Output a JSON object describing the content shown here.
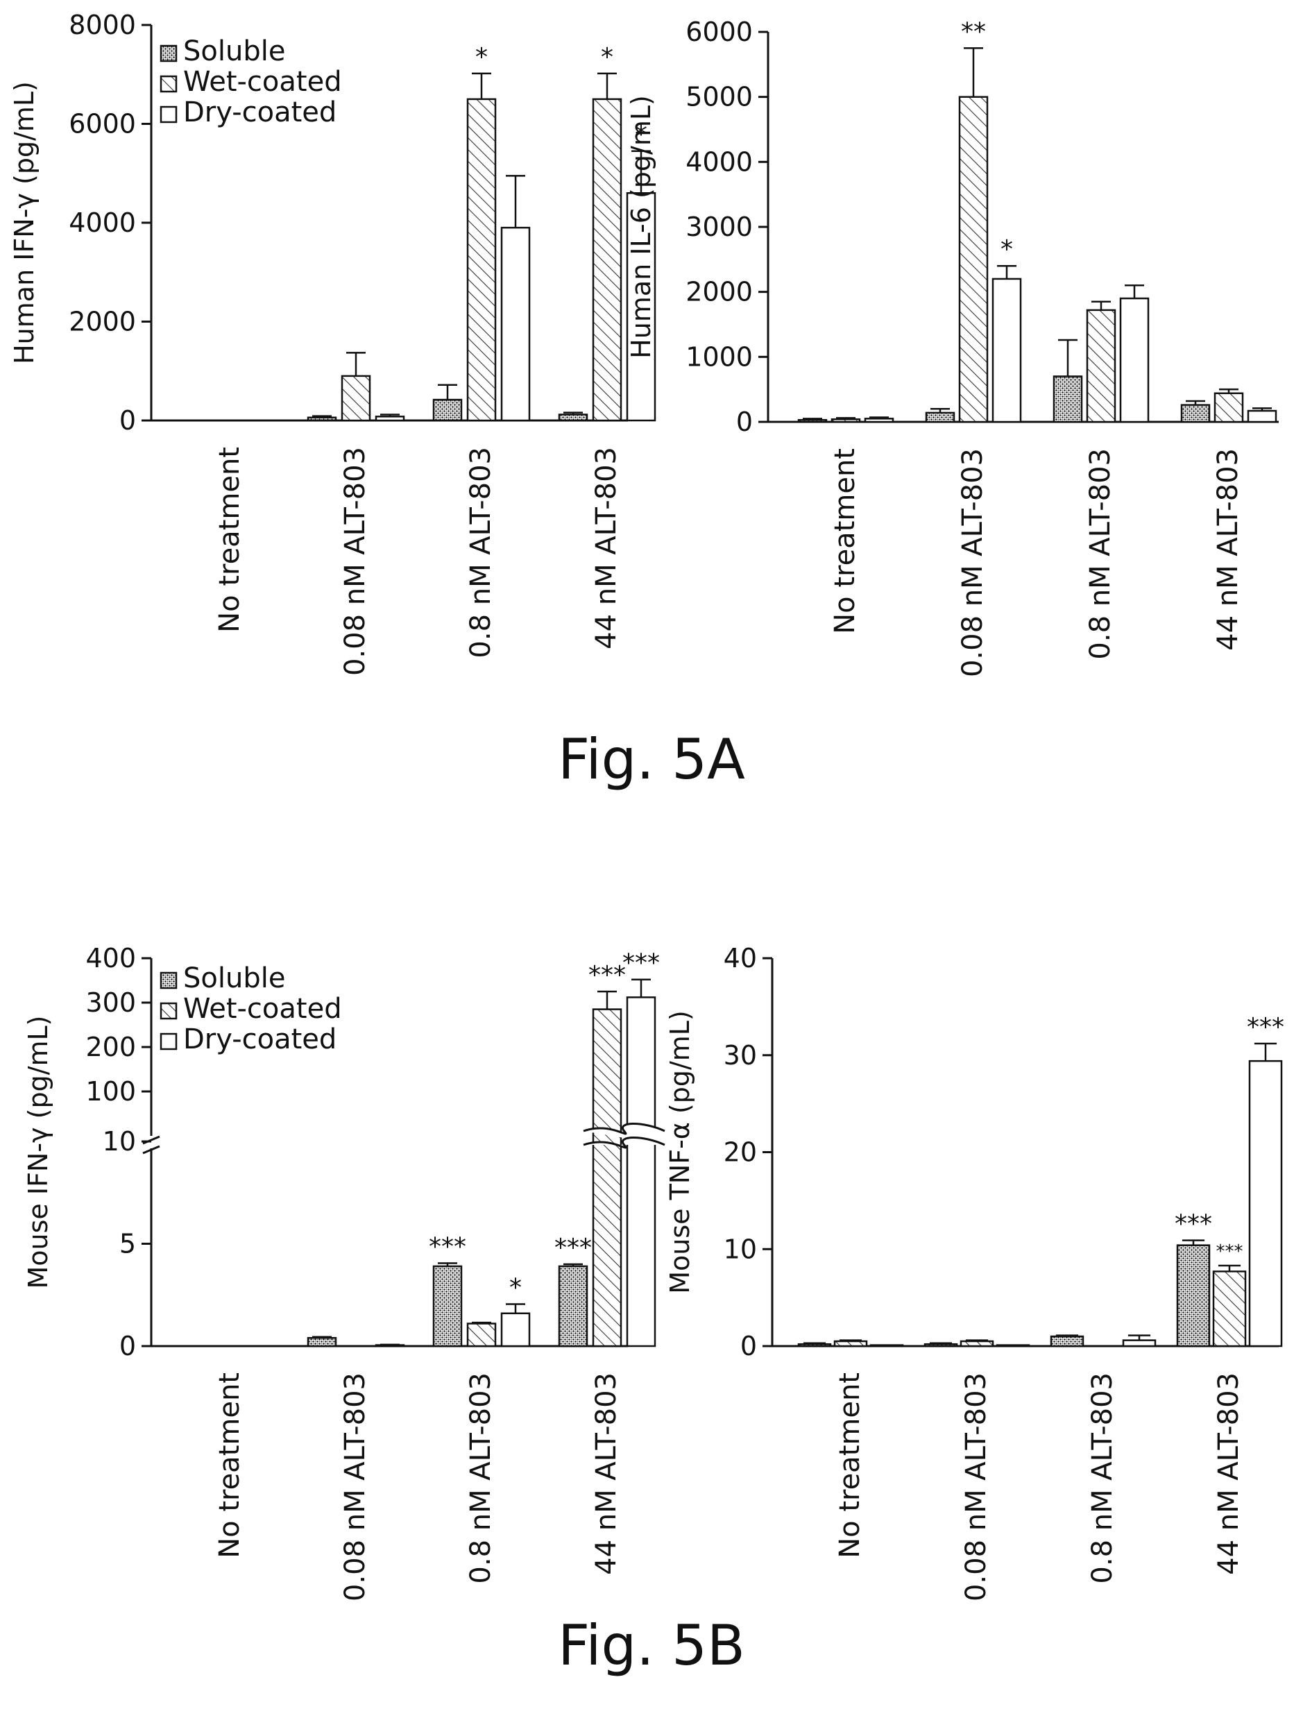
{
  "figures": {
    "fig_5a": "Fig. 5A",
    "fig_5b": "Fig. 5B"
  },
  "chart_data": [
    {
      "type": "bar",
      "panel": "5A-left",
      "ylabel": "Human IFN-γ (pg/mL)",
      "xlabel": "",
      "ylim": [
        0,
        8000
      ],
      "yticks": [
        0,
        2000,
        4000,
        6000,
        8000
      ],
      "categories": [
        "No treatment",
        "0.08 nM ALT-803",
        "0.8 nM ALT-803",
        "44 nM ALT-803"
      ],
      "legend": {
        "position": "top-left",
        "entries": [
          "Soluble",
          "Wet-coated",
          "Dry-coated"
        ]
      },
      "series": [
        {
          "name": "Soluble",
          "values": [
            0,
            60,
            420,
            120
          ],
          "errors": [
            0,
            30,
            300,
            40
          ]
        },
        {
          "name": "Wet-coated",
          "values": [
            0,
            900,
            6500,
            6500
          ],
          "errors": [
            0,
            470,
            520,
            520
          ]
        },
        {
          "name": "Dry-coated",
          "values": [
            0,
            80,
            3900,
            4600
          ],
          "errors": [
            0,
            40,
            1050,
            850
          ]
        }
      ],
      "annotations": [
        {
          "category": 2,
          "series": 1,
          "text": "*"
        },
        {
          "category": 3,
          "series": 1,
          "text": "*"
        },
        {
          "category": 3,
          "series": 2,
          "text": "*"
        }
      ]
    },
    {
      "type": "bar",
      "panel": "5A-right",
      "ylabel": "Human IL-6 (pg/mL)",
      "xlabel": "",
      "ylim": [
        0,
        6000
      ],
      "yticks": [
        0,
        1000,
        2000,
        3000,
        4000,
        5000,
        6000
      ],
      "categories": [
        "No treatment",
        "0.08 nM ALT-803",
        "0.8 nM ALT-803",
        "44 nM ALT-803"
      ],
      "series": [
        {
          "name": "Soluble",
          "values": [
            30,
            140,
            700,
            260
          ],
          "errors": [
            20,
            60,
            560,
            60
          ]
        },
        {
          "name": "Wet-coated",
          "values": [
            40,
            5000,
            1720,
            440
          ],
          "errors": [
            20,
            750,
            130,
            60
          ]
        },
        {
          "name": "Dry-coated",
          "values": [
            50,
            2200,
            1900,
            170
          ],
          "errors": [
            20,
            200,
            200,
            40
          ]
        }
      ],
      "annotations": [
        {
          "category": 1,
          "series": 1,
          "text": "**"
        },
        {
          "category": 1,
          "series": 2,
          "text": "*"
        }
      ]
    },
    {
      "type": "bar",
      "panel": "5B-left",
      "ylabel": "Mouse IFN-γ (pg/mL)",
      "xlabel": "",
      "y_axis_break": "between 5 and 10",
      "ylim_lower": [
        0,
        10
      ],
      "yticks_lower": [
        0,
        5,
        10
      ],
      "ylim_upper": [
        100,
        400
      ],
      "yticks_upper": [
        100,
        200,
        300,
        400
      ],
      "categories": [
        "No treatment",
        "0.08 nM ALT-803",
        "0.8 nM ALT-803",
        "44 nM ALT-803"
      ],
      "legend": {
        "position": "top-left",
        "entries": [
          "Soluble",
          "Wet-coated",
          "Dry-coated"
        ]
      },
      "series": [
        {
          "name": "Soluble",
          "values": [
            0,
            0.4,
            3.9,
            3.9
          ],
          "errors": [
            0,
            0.05,
            0.15,
            0.1
          ]
        },
        {
          "name": "Wet-coated",
          "values": [
            0,
            0,
            1.1,
            285
          ],
          "errors": [
            0,
            0,
            0.05,
            40
          ]
        },
        {
          "name": "Dry-coated",
          "values": [
            0,
            0.05,
            1.6,
            312
          ],
          "errors": [
            0,
            0.02,
            0.45,
            40
          ]
        }
      ],
      "annotations": [
        {
          "category": 2,
          "series": 0,
          "text": "***"
        },
        {
          "category": 2,
          "series": 2,
          "text": "*"
        },
        {
          "category": 3,
          "series": 0,
          "text": "***"
        },
        {
          "category": 3,
          "series": 1,
          "text": "***"
        },
        {
          "category": 3,
          "series": 2,
          "text": "***"
        }
      ]
    },
    {
      "type": "bar",
      "panel": "5B-right",
      "ylabel": "Mouse TNF-α (pg/mL)",
      "xlabel": "",
      "ylim": [
        0,
        40
      ],
      "yticks": [
        0,
        10,
        20,
        30,
        40
      ],
      "categories": [
        "No treatment",
        "0.08 nM ALT-803",
        "0.8 nM ALT-803",
        "44 nM ALT-803"
      ],
      "series": [
        {
          "name": "Soluble",
          "values": [
            0.2,
            0.2,
            1.0,
            10.4
          ],
          "errors": [
            0.1,
            0.1,
            0.1,
            0.5
          ]
        },
        {
          "name": "Wet-coated",
          "values": [
            0.5,
            0.5,
            0,
            7.7
          ],
          "errors": [
            0.1,
            0.1,
            0,
            0.6
          ]
        },
        {
          "name": "Dry-coated",
          "values": [
            0.1,
            0.1,
            0.6,
            29.4
          ],
          "errors": [
            0,
            0,
            0.5,
            1.8
          ]
        }
      ],
      "annotations": [
        {
          "category": 3,
          "series": 0,
          "text": "***"
        },
        {
          "category": 3,
          "series": 1,
          "text": "***",
          "small": true
        },
        {
          "category": 3,
          "series": 2,
          "text": "***"
        }
      ]
    }
  ]
}
